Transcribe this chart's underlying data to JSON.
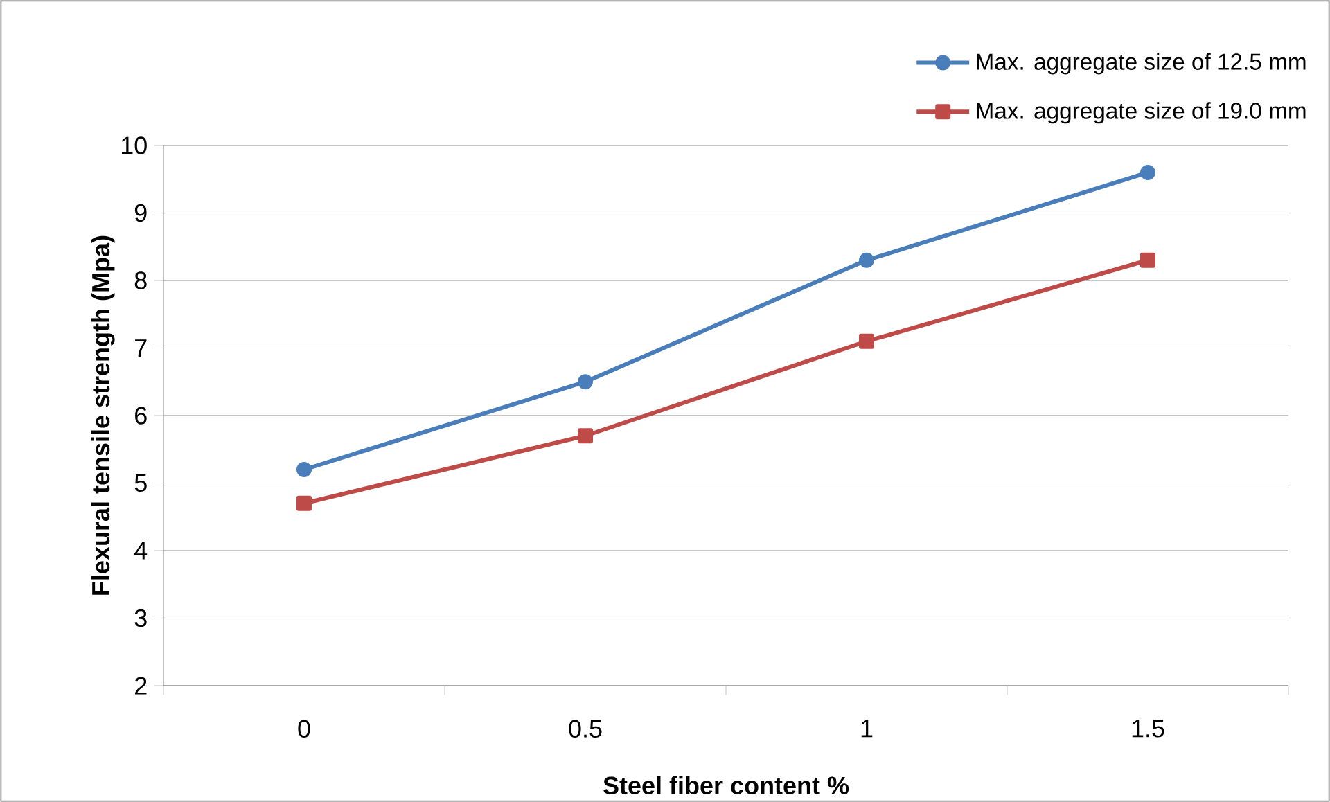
{
  "chart_data": {
    "type": "line",
    "xlabel": "Steel fiber content %",
    "ylabel": "Flexural tensile strength (Mpa)",
    "categories": [
      "0",
      "0.5",
      "1",
      "1.5"
    ],
    "series": [
      {
        "name": "Max. aggregate size of 12.5 mm",
        "color": "#4a7ebb",
        "marker": "circle",
        "values": [
          5.2,
          6.5,
          8.3,
          9.6
        ]
      },
      {
        "name": "Max. aggregate size of 19.0 mm",
        "color": "#be4b48",
        "marker": "square",
        "values": [
          4.7,
          5.7,
          7.1,
          8.3
        ]
      }
    ],
    "ylim": [
      2,
      10
    ],
    "yticks": [
      2,
      3,
      4,
      5,
      6,
      7,
      8,
      9,
      10
    ],
    "grid": "y",
    "legend": "top right",
    "line_style": "solid"
  }
}
